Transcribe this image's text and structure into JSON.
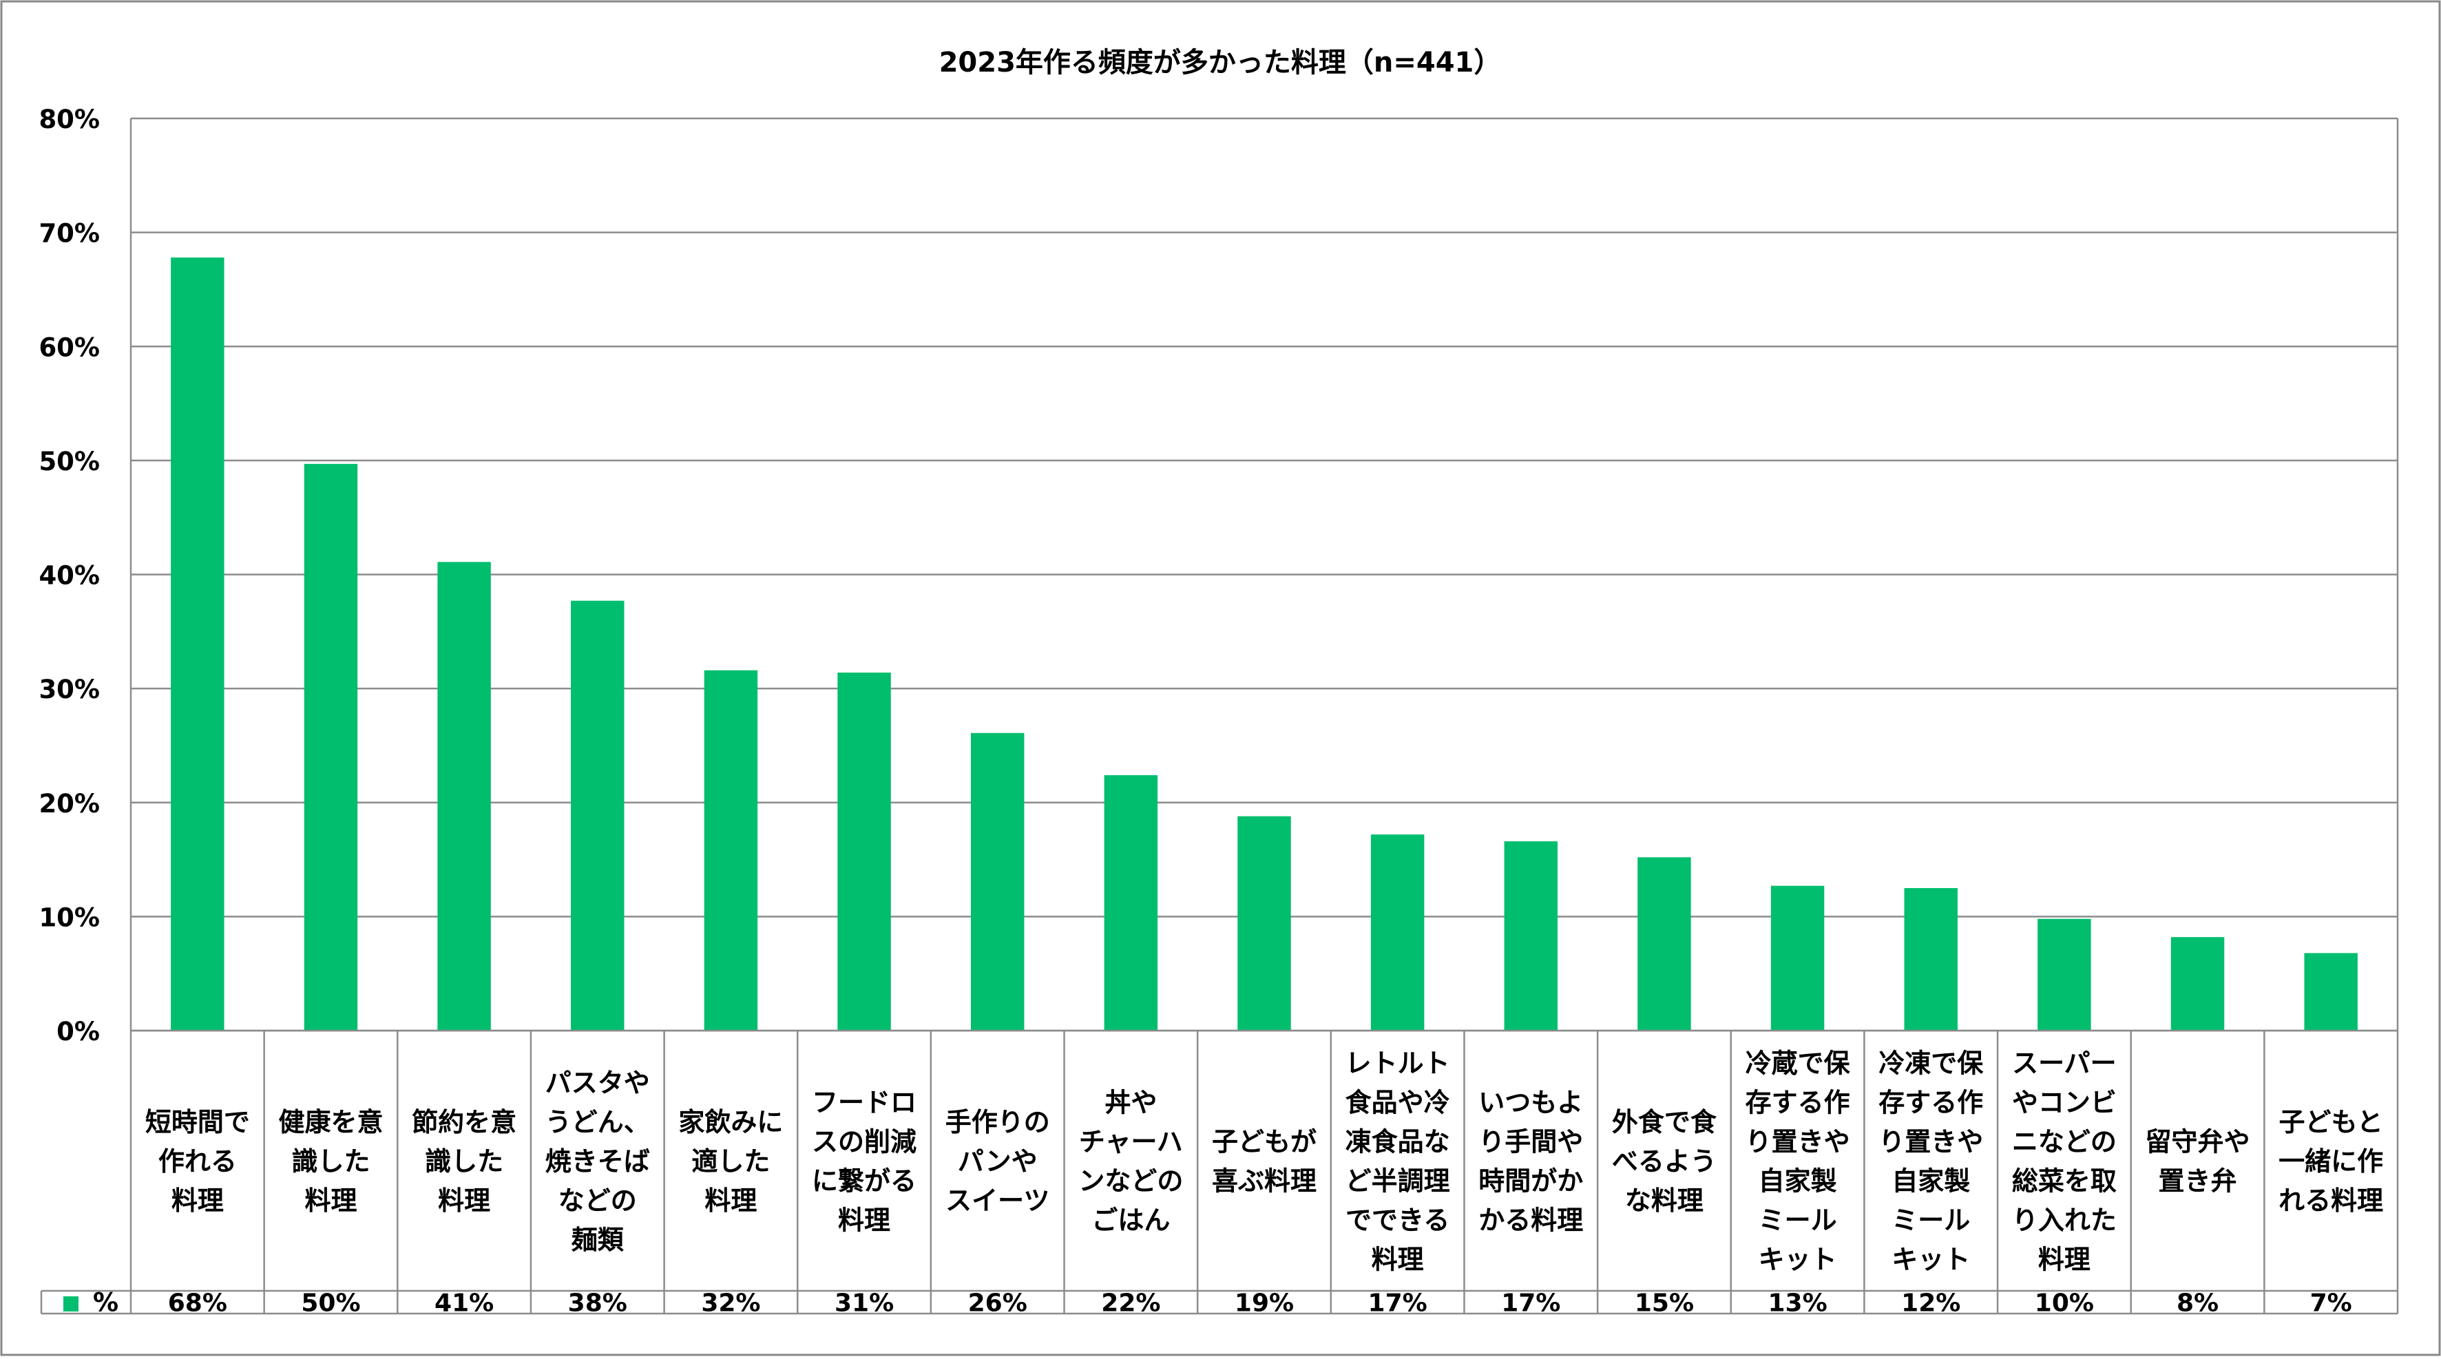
{
  "chart_data": {
    "type": "bar",
    "title": "2023年作る頻度が多かった料理（n=441）",
    "series": [
      {
        "name": "%",
        "color": "#00BE6E",
        "values": [
          67.8,
          49.7,
          41.1,
          37.7,
          31.6,
          31.4,
          26.1,
          22.4,
          18.8,
          17.2,
          16.6,
          15.2,
          12.7,
          12.5,
          9.8,
          8.2,
          6.8
        ],
        "labels": [
          "68%",
          "50%",
          "41%",
          "38%",
          "32%",
          "31%",
          "26%",
          "22%",
          "19%",
          "17%",
          "17%",
          "15%",
          "13%",
          "12%",
          "10%",
          "8%",
          "7%"
        ]
      }
    ],
    "categories": [
      [
        "短時間で",
        "作れる",
        "料理"
      ],
      [
        "健康を意",
        "識した",
        "料理"
      ],
      [
        "節約を意",
        "識した",
        "料理"
      ],
      [
        "パスタや",
        "うどん、",
        "焼きそば",
        "などの",
        "麺類"
      ],
      [
        "家飲みに",
        "適した",
        "料理"
      ],
      [
        "フードロ",
        "スの削減",
        "に繋がる",
        "料理"
      ],
      [
        "手作りの",
        "パンや",
        "スイーツ"
      ],
      [
        "丼や",
        "チャーハ",
        "ンなどの",
        "ごはん"
      ],
      [
        "子どもが",
        "喜ぶ料理"
      ],
      [
        "レトルト",
        "食品や冷",
        "凍食品な",
        "ど半調理",
        "でできる",
        "料理"
      ],
      [
        "いつもよ",
        "り手間や",
        "時間がか",
        "かる料理"
      ],
      [
        "外食で食",
        "べるよう",
        "な料理"
      ],
      [
        "冷蔵で保",
        "存する作",
        "り置きや",
        "自家製",
        "ミール",
        "キット"
      ],
      [
        "冷凍で保",
        "存する作",
        "り置きや",
        "自家製",
        "ミール",
        "キット"
      ],
      [
        "スーパー",
        "やコンビ",
        "ニなどの",
        "総菜を取",
        "り入れた",
        "料理"
      ],
      [
        "留守弁や",
        "置き弁"
      ],
      [
        "子どもと",
        "一緒に作",
        "れる料理"
      ]
    ],
    "yaxis": {
      "min": 0,
      "max": 80,
      "step": 10,
      "tick_labels": [
        "0%",
        "10%",
        "20%",
        "30%",
        "40%",
        "50%",
        "60%",
        "70%",
        "80%"
      ]
    },
    "grid": true,
    "legend": "data-table-left"
  }
}
